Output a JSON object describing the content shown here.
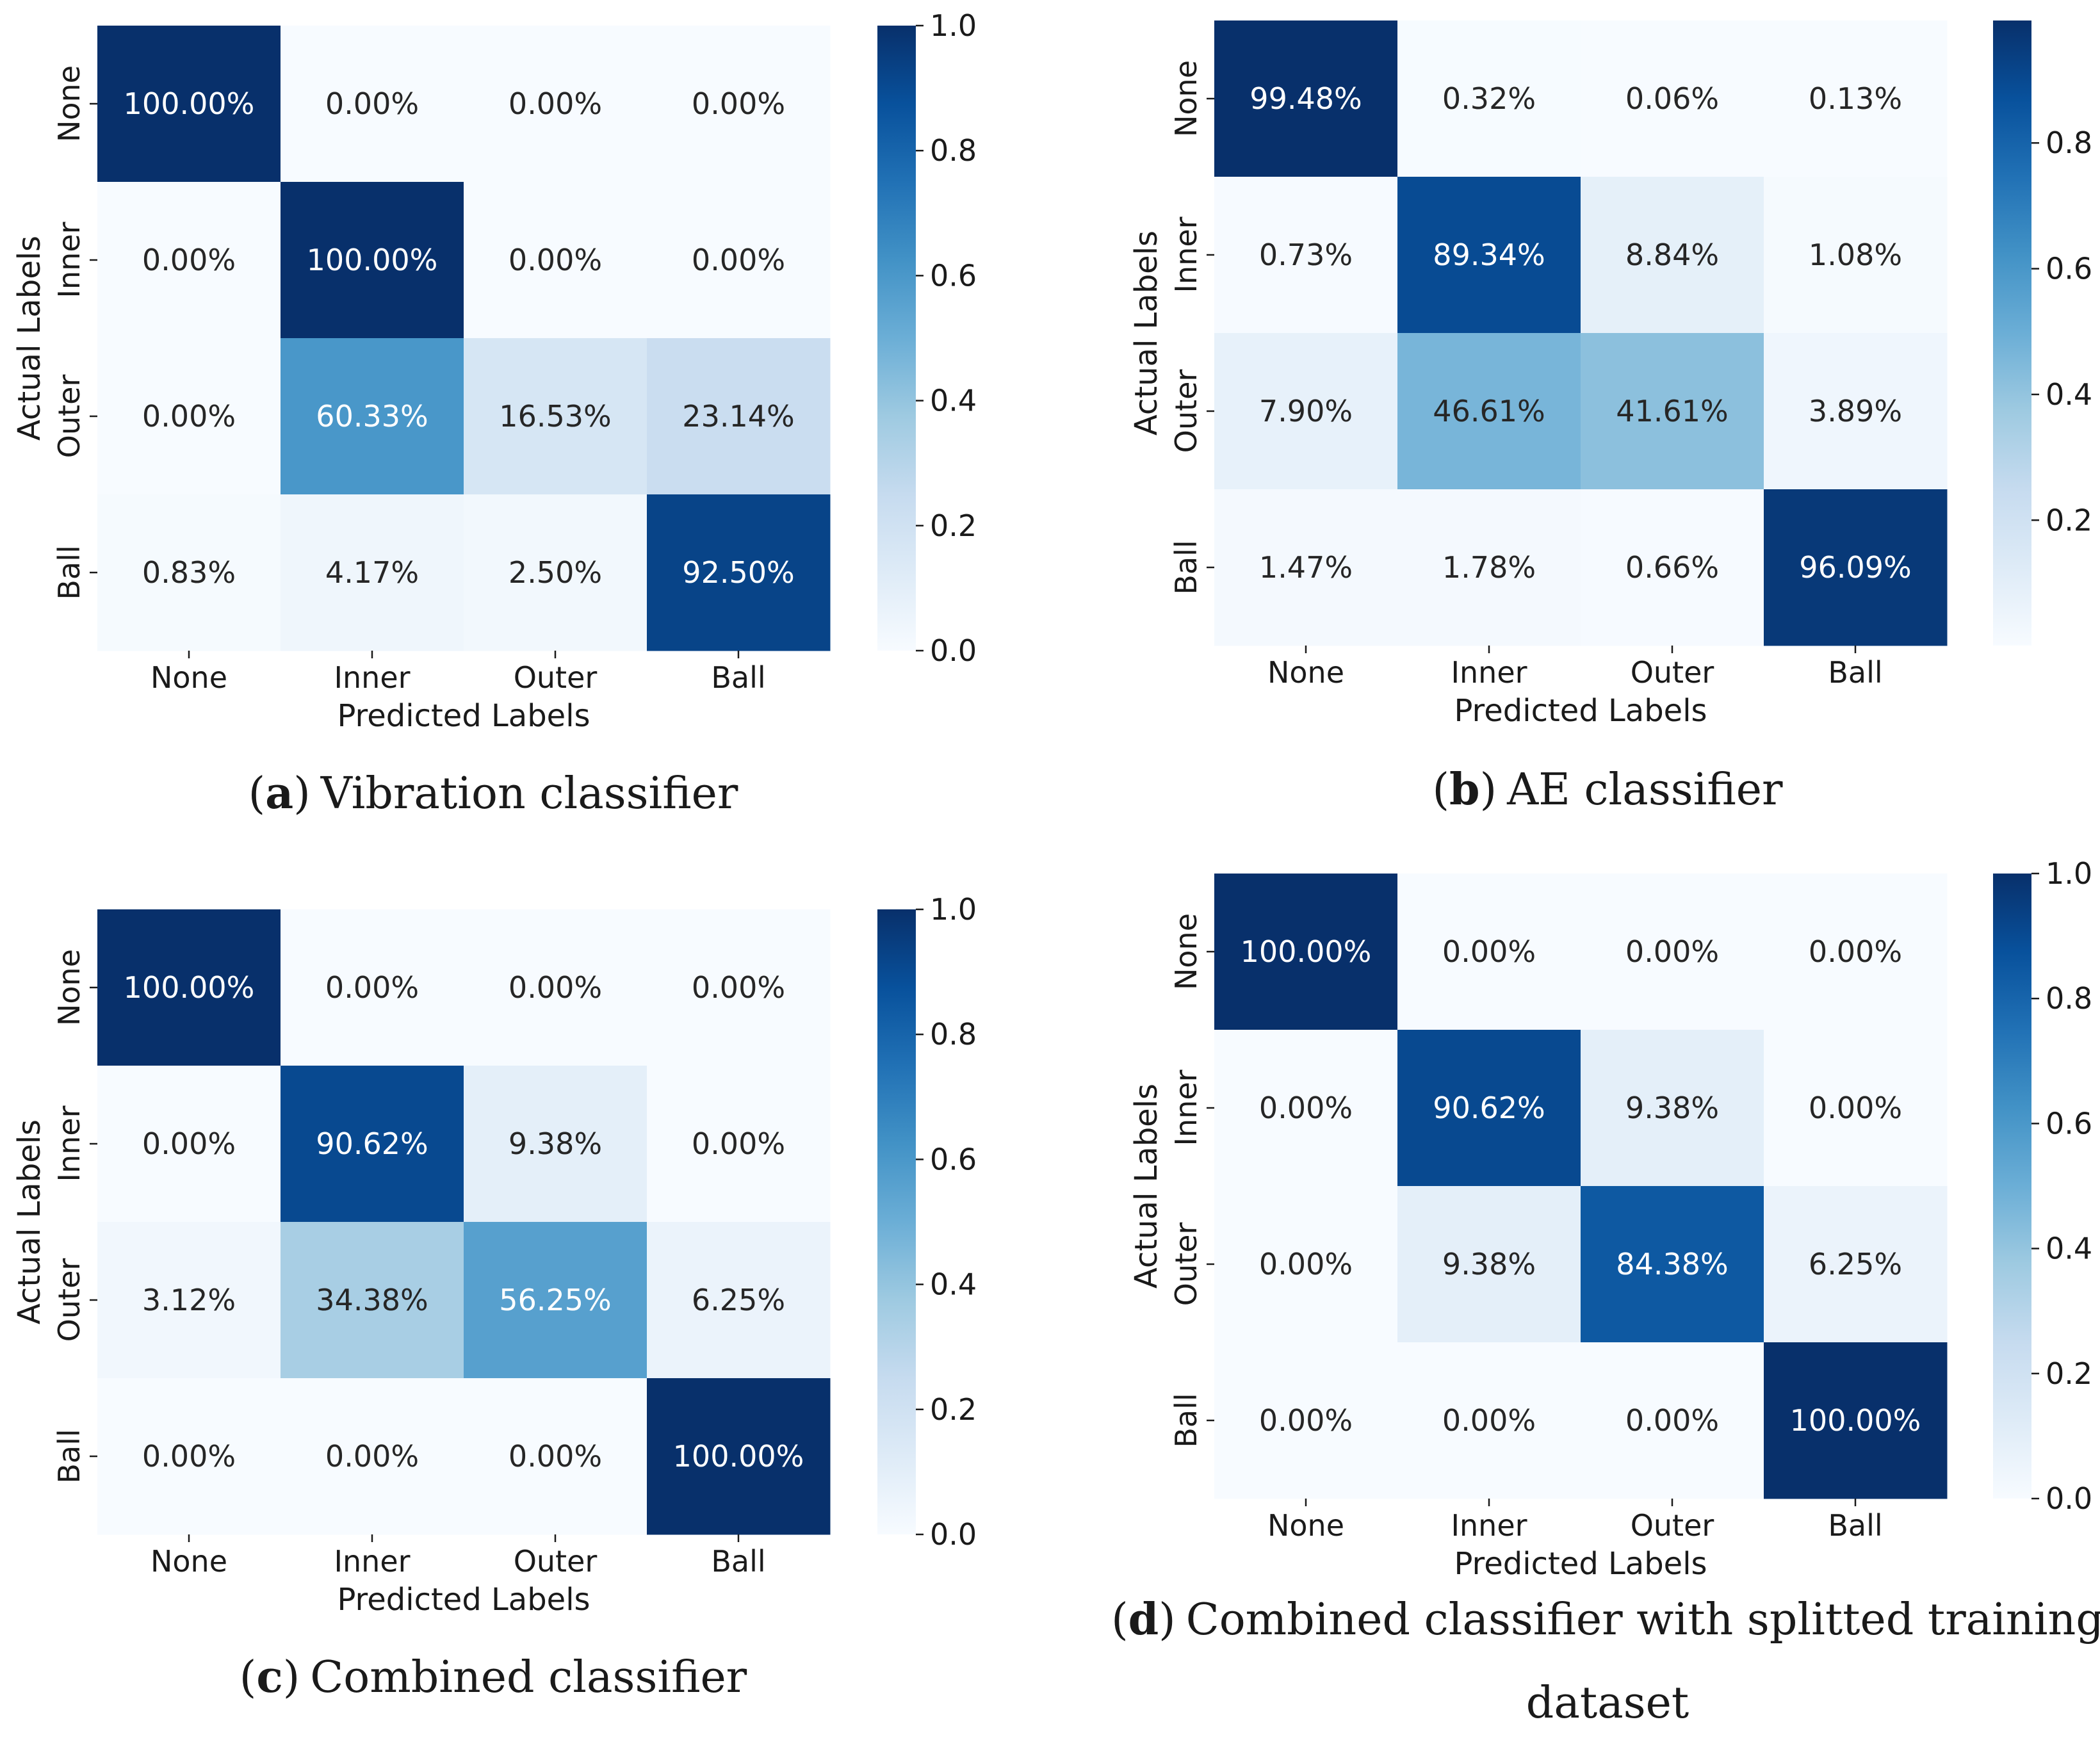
{
  "chart_data": [
    {
      "type": "heatmap",
      "caption_letter": "a",
      "caption_text": "Vibration classifier",
      "caption_open": "(",
      "caption_close": ")",
      "xlabel": "Predicted Labels",
      "ylabel": "Actual Labels",
      "x_categories": [
        "None",
        "Inner",
        "Outer",
        "Ball"
      ],
      "y_categories": [
        "None",
        "Inner",
        "Outer",
        "Ball"
      ],
      "values": [
        [
          1.0,
          0.0,
          0.0,
          0.0
        ],
        [
          0.0,
          1.0,
          0.0,
          0.0
        ],
        [
          0.0,
          0.6033,
          0.1653,
          0.2314
        ],
        [
          0.0083,
          0.0417,
          0.025,
          0.925
        ]
      ],
      "labels": [
        [
          "100.00%",
          "0.00%",
          "0.00%",
          "0.00%"
        ],
        [
          "0.00%",
          "100.00%",
          "0.00%",
          "0.00%"
        ],
        [
          "0.00%",
          "60.33%",
          "16.53%",
          "23.14%"
        ],
        [
          "0.83%",
          "4.17%",
          "2.50%",
          "92.50%"
        ]
      ],
      "colorbar": {
        "range": [
          0,
          1
        ],
        "ticks": [
          "0.0",
          "0.2",
          "0.4",
          "0.6",
          "0.8",
          "1.0"
        ],
        "colormap": "Blues"
      }
    },
    {
      "type": "heatmap",
      "caption_letter": "b",
      "caption_text": "AE classifier",
      "caption_open": "(",
      "caption_close": ")",
      "xlabel": "Predicted Labels",
      "ylabel": "Actual Labels",
      "x_categories": [
        "None",
        "Inner",
        "Outer",
        "Ball"
      ],
      "y_categories": [
        "None",
        "Inner",
        "Outer",
        "Ball"
      ],
      "values": [
        [
          0.9948,
          0.0032,
          0.0006,
          0.0013
        ],
        [
          0.0073,
          0.8934,
          0.0884,
          0.0108
        ],
        [
          0.079,
          0.4661,
          0.4161,
          0.0389
        ],
        [
          0.0147,
          0.0178,
          0.0066,
          0.9609
        ]
      ],
      "labels": [
        [
          "99.48%",
          "0.32%",
          "0.06%",
          "0.13%"
        ],
        [
          "0.73%",
          "89.34%",
          "8.84%",
          "1.08%"
        ],
        [
          "7.90%",
          "46.61%",
          "41.61%",
          "3.89%"
        ],
        [
          "1.47%",
          "1.78%",
          "0.66%",
          "96.09%"
        ]
      ],
      "colorbar": {
        "range": [
          0.0006,
          0.9948
        ],
        "ticks": [
          "0.2",
          "0.4",
          "0.6",
          "0.8"
        ],
        "colormap": "Blues"
      }
    },
    {
      "type": "heatmap",
      "caption_letter": "c",
      "caption_text": "Combined classifier",
      "caption_open": "(",
      "caption_close": ")",
      "xlabel": "Predicted Labels",
      "ylabel": "Actual Labels",
      "x_categories": [
        "None",
        "Inner",
        "Outer",
        "Ball"
      ],
      "y_categories": [
        "None",
        "Inner",
        "Outer",
        "Ball"
      ],
      "values": [
        [
          1.0,
          0.0,
          0.0,
          0.0
        ],
        [
          0.0,
          0.9062,
          0.0938,
          0.0
        ],
        [
          0.0312,
          0.3438,
          0.5625,
          0.0625
        ],
        [
          0.0,
          0.0,
          0.0,
          1.0
        ]
      ],
      "labels": [
        [
          "100.00%",
          "0.00%",
          "0.00%",
          "0.00%"
        ],
        [
          "0.00%",
          "90.62%",
          "9.38%",
          "0.00%"
        ],
        [
          "3.12%",
          "34.38%",
          "56.25%",
          "6.25%"
        ],
        [
          "0.00%",
          "0.00%",
          "0.00%",
          "100.00%"
        ]
      ],
      "colorbar": {
        "range": [
          0,
          1
        ],
        "ticks": [
          "0.0",
          "0.2",
          "0.4",
          "0.6",
          "0.8",
          "1.0"
        ],
        "colormap": "Blues"
      }
    },
    {
      "type": "heatmap",
      "caption_letter": "d",
      "caption_text": "Combined classifier with splitted training",
      "caption_text_line2": "dataset",
      "caption_open": "(",
      "caption_close": ")",
      "xlabel": "Predicted Labels",
      "ylabel": "Actual Labels",
      "x_categories": [
        "None",
        "Inner",
        "Outer",
        "Ball"
      ],
      "y_categories": [
        "None",
        "Inner",
        "Outer",
        "Ball"
      ],
      "values": [
        [
          1.0,
          0.0,
          0.0,
          0.0
        ],
        [
          0.0,
          0.9062,
          0.0938,
          0.0
        ],
        [
          0.0,
          0.0938,
          0.8438,
          0.0625
        ],
        [
          0.0,
          0.0,
          0.0,
          1.0
        ]
      ],
      "labels": [
        [
          "100.00%",
          "0.00%",
          "0.00%",
          "0.00%"
        ],
        [
          "0.00%",
          "90.62%",
          "9.38%",
          "0.00%"
        ],
        [
          "0.00%",
          "9.38%",
          "84.38%",
          "6.25%"
        ],
        [
          "0.00%",
          "0.00%",
          "0.00%",
          "100.00%"
        ]
      ],
      "colorbar": {
        "range": [
          0,
          1
        ],
        "ticks": [
          "0.0",
          "0.2",
          "0.4",
          "0.6",
          "0.8",
          "1.0"
        ],
        "colormap": "Blues"
      }
    }
  ]
}
